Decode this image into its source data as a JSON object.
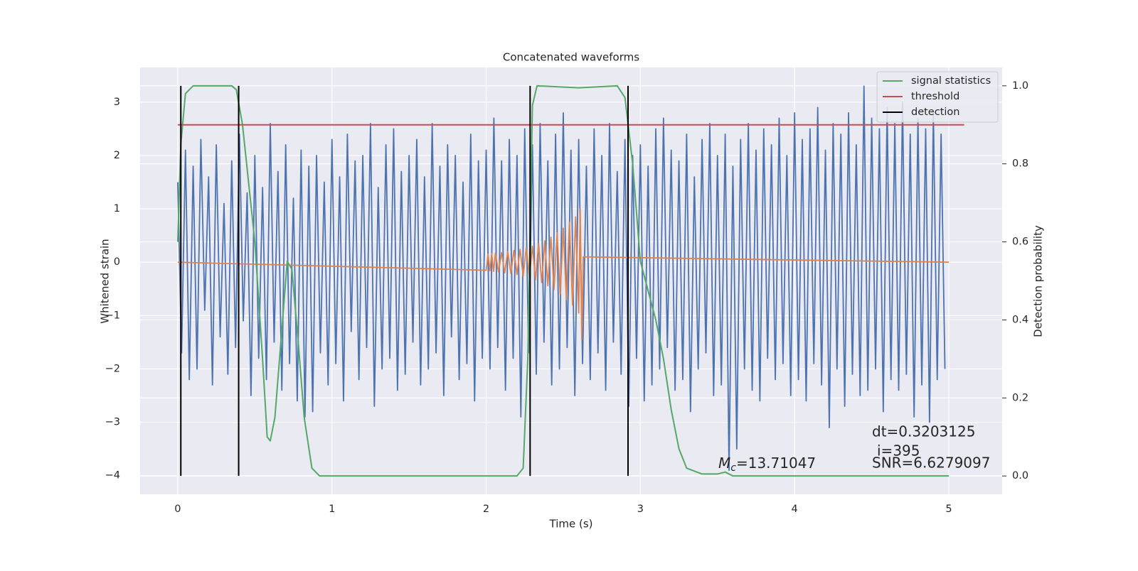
{
  "chart_data": {
    "type": "line",
    "title": "Concatenated waveforms",
    "xlabel": "Time (s)",
    "ylabel": "Whitened strain",
    "y2label": "Detection probability",
    "xlim": [
      -0.244,
      5.346
    ],
    "ylim": [
      -4.35,
      3.65
    ],
    "y2lim": [
      -0.047,
      1.047
    ],
    "xticks": [
      0,
      1,
      2,
      3,
      4,
      5
    ],
    "yticks": [
      {
        "value": -4,
        "label": "−4"
      },
      {
        "value": -3,
        "label": "−3"
      },
      {
        "value": -2,
        "label": "−2"
      },
      {
        "value": -1,
        "label": "−1"
      },
      0,
      1,
      2,
      3
    ],
    "y2ticks": [
      {
        "value": 0,
        "label": "0.0"
      },
      {
        "value": 0.2,
        "label": "0.2"
      },
      {
        "value": 0.4,
        "label": "0.4"
      },
      {
        "value": 0.6,
        "label": "0.6"
      },
      {
        "value": 0.8,
        "label": "0.8"
      },
      {
        "value": 1,
        "label": "1.0"
      }
    ],
    "grid": true,
    "legend": "upper right",
    "series": [
      {
        "color": "#4c72b0",
        "x": [
          0,
          0.025,
          0.05,
          0.075,
          0.1,
          0.125,
          0.15,
          0.175,
          0.2,
          0.225,
          0.25,
          0.275,
          0.3,
          0.325,
          0.35,
          0.375,
          0.4,
          0.425,
          0.45,
          0.475,
          0.5,
          0.525,
          0.55,
          0.575,
          0.6,
          0.625,
          0.65,
          0.675,
          0.7,
          0.725,
          0.75,
          0.775,
          0.8,
          0.825,
          0.85,
          0.875,
          0.9,
          0.925,
          0.95,
          0.975,
          1,
          1.025,
          1.05,
          1.075,
          1.1,
          1.125,
          1.15,
          1.175,
          1.2,
          1.225,
          1.25,
          1.275,
          1.3,
          1.325,
          1.35,
          1.375,
          1.4,
          1.425,
          1.45,
          1.475,
          1.5,
          1.525,
          1.55,
          1.575,
          1.6,
          1.625,
          1.65,
          1.675,
          1.7,
          1.725,
          1.75,
          1.775,
          1.8,
          1.825,
          1.85,
          1.875,
          1.9,
          1.925,
          1.95,
          1.975,
          2,
          2.025,
          2.05,
          2.075,
          2.1,
          2.125,
          2.15,
          2.175,
          2.2,
          2.225,
          2.25,
          2.275,
          2.3,
          2.325,
          2.35,
          2.375,
          2.4,
          2.425,
          2.45,
          2.475,
          2.5,
          2.525,
          2.55,
          2.575,
          2.6,
          2.625,
          2.65,
          2.675,
          2.7,
          2.725,
          2.75,
          2.775,
          2.8,
          2.825,
          2.85,
          2.875,
          2.9,
          2.925,
          2.95,
          2.975,
          3,
          3.025,
          3.05,
          3.075,
          3.1,
          3.125,
          3.15,
          3.175,
          3.2,
          3.225,
          3.25,
          3.275,
          3.3,
          3.325,
          3.35,
          3.375,
          3.4,
          3.425,
          3.45,
          3.475,
          3.5,
          3.525,
          3.55,
          3.575,
          3.6,
          3.625,
          3.65,
          3.675,
          3.7,
          3.725,
          3.75,
          3.775,
          3.8,
          3.825,
          3.85,
          3.875,
          3.9,
          3.925,
          3.95,
          3.975,
          4,
          4.025,
          4.05,
          4.075,
          4.1,
          4.125,
          4.15,
          4.175,
          4.2,
          4.225,
          4.25,
          4.275,
          4.3,
          4.325,
          4.35,
          4.375,
          4.4,
          4.425,
          4.45,
          4.475,
          4.5,
          4.525,
          4.55,
          4.575,
          4.6,
          4.625,
          4.65,
          4.675,
          4.7,
          4.725,
          4.75,
          4.775,
          4.8,
          4.825,
          4.85,
          4.875,
          4.9,
          4.925,
          4.95,
          4.975
        ],
        "values": [
          1.5,
          -1.7,
          2.1,
          -2.2,
          1.8,
          -2.0,
          2.3,
          -0.9,
          1.6,
          -2.3,
          2.2,
          -1.4,
          1.1,
          -2.1,
          1.9,
          -1.6,
          2.4,
          -1.1,
          1.3,
          -2.5,
          2.0,
          -1.8,
          1.4,
          -2.2,
          2.6,
          -1.5,
          1.7,
          -2.4,
          2.2,
          -1.9,
          1.2,
          -2.6,
          2.1,
          -2.9,
          1.8,
          -2.8,
          2.0,
          -1.7,
          1.5,
          -2.3,
          2.3,
          -1.9,
          1.6,
          -2.6,
          2.4,
          -1.3,
          1.9,
          -2.2,
          2.0,
          -1.6,
          2.6,
          -2.7,
          1.4,
          -2.0,
          2.2,
          -1.8,
          2.5,
          -2.4,
          1.7,
          -2.1,
          2.0,
          -1.5,
          2.3,
          -2.3,
          1.6,
          -2.0,
          2.6,
          -1.7,
          1.8,
          -2.5,
          2.2,
          -1.4,
          2.0,
          -2.2,
          1.5,
          -1.9,
          2.4,
          -2.6,
          1.9,
          -1.8,
          2.1,
          -2.0,
          2.7,
          -1.6,
          1.9,
          -2.4,
          2.3,
          -1.8,
          2.0,
          -2.9,
          2.5,
          -1.7,
          2.2,
          -2.1,
          2.6,
          -1.5,
          1.9,
          -2.3,
          2.4,
          -2.0,
          2.8,
          -1.6,
          2.1,
          -2.5,
          2.3,
          -1.9,
          1.8,
          -2.2,
          2.5,
          -1.7,
          2.0,
          -2.4,
          2.6,
          -1.5,
          1.7,
          -2.1,
          2.3,
          -2.7,
          2.0,
          -1.8,
          2.2,
          -2.6,
          1.8,
          -2.3,
          2.5,
          -2.0,
          2.7,
          -1.6,
          2.1,
          -2.4,
          1.9,
          -2.2,
          2.4,
          -2.8,
          1.6,
          -2.0,
          2.3,
          -1.7,
          2.6,
          -2.5,
          2.0,
          -2.3,
          2.4,
          -3.9,
          1.8,
          -3.5,
          2.3,
          -2.0,
          2.6,
          -2.4,
          2.1,
          -2.6,
          2.5,
          -1.8,
          2.2,
          -2.2,
          2.7,
          -1.9,
          2.0,
          -2.5,
          2.8,
          -2.2,
          2.3,
          -2.6,
          2.5,
          -1.9,
          2.9,
          -2.3,
          2.1,
          -3.1,
          2.6,
          -2.0,
          2.4,
          -2.7,
          2.8,
          -2.1,
          2.2,
          -2.5,
          3.3,
          -2.4,
          2.7,
          -2.0,
          2.5,
          -2.8,
          2.9,
          -2.2,
          2.6,
          -2.4,
          3.0,
          -2.1,
          2.4,
          -2.9,
          2.7,
          -2.3,
          2.5,
          -3.0,
          2.8,
          -2.2,
          2.4,
          -2.0
        ]
      },
      {
        "color": "#dd8452",
        "x": [
          0,
          2.0,
          2.012,
          2.024,
          2.036,
          2.048,
          2.06,
          2.08,
          2.1,
          2.12,
          2.14,
          2.16,
          2.18,
          2.2,
          2.22,
          2.24,
          2.26,
          2.28,
          2.3,
          2.32,
          2.34,
          2.36,
          2.38,
          2.4,
          2.42,
          2.44,
          2.46,
          2.48,
          2.5,
          2.52,
          2.54,
          2.56,
          2.58,
          2.6,
          2.61,
          2.62,
          2.63,
          5
        ],
        "values": [
          0,
          -0.15,
          0.15,
          -0.16,
          0.16,
          -0.17,
          0.17,
          -0.18,
          0.18,
          -0.2,
          0.2,
          -0.21,
          0.22,
          -0.23,
          0.24,
          -0.26,
          0.27,
          -0.29,
          0.3,
          -0.33,
          0.35,
          -0.38,
          0.4,
          -0.44,
          0.47,
          -0.51,
          0.55,
          -0.6,
          0.64,
          -0.7,
          0.75,
          -0.8,
          0.85,
          -0.95,
          1.0,
          -1.45,
          0.1,
          0
        ]
      },
      {
        "name": "signal statistics",
        "color": "#55a868",
        "axis": "y2",
        "x": [
          0,
          0.02,
          0.05,
          0.1,
          0.35,
          0.38,
          0.42,
          0.5,
          0.55,
          0.58,
          0.6,
          0.63,
          0.67,
          0.71,
          0.74,
          0.78,
          0.82,
          0.87,
          0.92,
          2.2,
          2.24,
          2.27,
          2.3,
          2.33,
          2.6,
          2.85,
          2.9,
          2.95,
          3.0,
          3.1,
          3.15,
          3.2,
          3.25,
          3.3,
          3.4,
          3.5,
          3.55,
          3.6,
          5.0
        ],
        "values": [
          0.6,
          0.85,
          0.98,
          1.0,
          1.0,
          0.99,
          0.9,
          0.6,
          0.3,
          0.1,
          0.09,
          0.15,
          0.35,
          0.55,
          0.53,
          0.35,
          0.15,
          0.02,
          0.0,
          0.0,
          0.02,
          0.3,
          0.95,
          1.0,
          0.995,
          1.0,
          0.97,
          0.8,
          0.55,
          0.4,
          0.3,
          0.17,
          0.07,
          0.02,
          0.005,
          0.005,
          0.01,
          0.0,
          0.0
        ]
      },
      {
        "name": "threshold",
        "color": "#c44e52",
        "axis": "y2",
        "x": [
          0,
          5.1
        ],
        "values": [
          0.9,
          0.9
        ]
      },
      {
        "name": "detection",
        "color": "#000000",
        "axis": "y2",
        "x": [
          0.02,
          0.02,
          null,
          0.395,
          0.395,
          null,
          2.285,
          2.285,
          null,
          2.92,
          2.92
        ],
        "values": [
          0,
          1,
          null,
          0,
          1,
          null,
          0,
          1,
          null,
          0,
          1
        ]
      }
    ],
    "annotations": {
      "dt": "dt=0.3203125",
      "i": "i=395",
      "mc_symbol": "M",
      "mc_subscript": "c",
      "mc_value": "=13.71047",
      "snr": "SNR=6.6279097"
    }
  }
}
